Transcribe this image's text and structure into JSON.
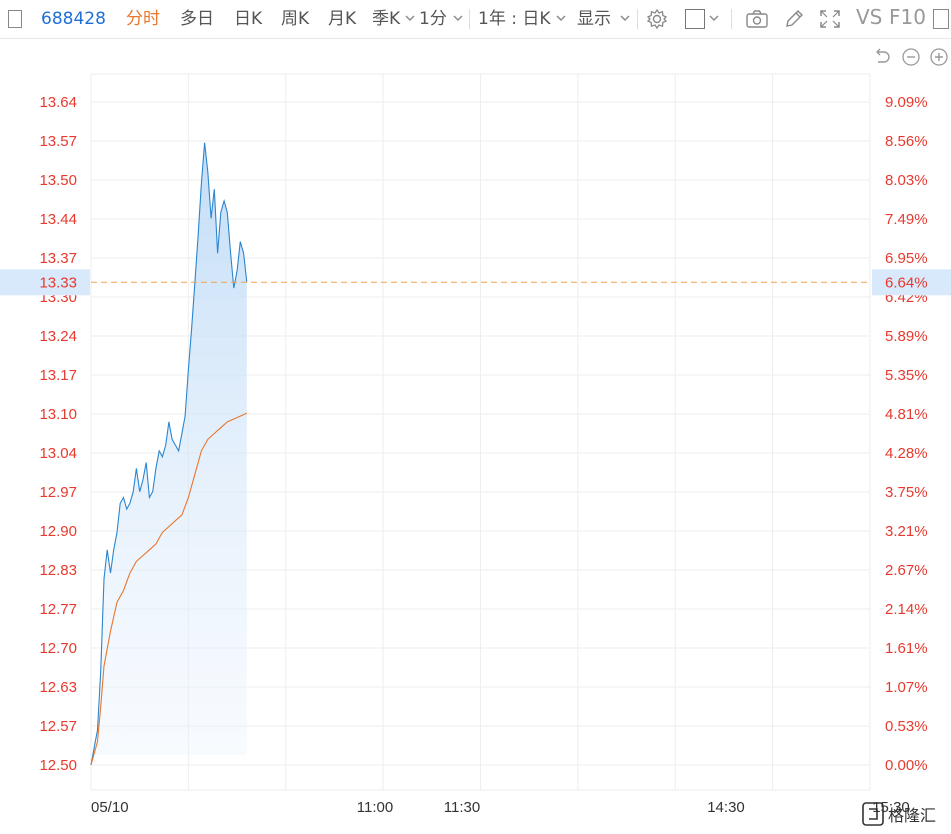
{
  "toolbar": {
    "code": "688428",
    "tabs": [
      "分时",
      "多日",
      "日K",
      "周K",
      "月K",
      "季K"
    ],
    "active_tab": "分时",
    "interval": "1分",
    "range": "1年 : 日K",
    "display": "显示",
    "vs": "VS",
    "f10": "F10"
  },
  "chart_data": {
    "type": "line",
    "current_price": "13.33",
    "current_pct": "6.64%",
    "left_ticks": [
      "13.64",
      "13.57",
      "13.50",
      "13.44",
      "13.37",
      "13.30",
      "13.24",
      "13.17",
      "13.10",
      "13.04",
      "12.97",
      "12.90",
      "12.83",
      "12.77",
      "12.70",
      "12.63",
      "12.57",
      "12.50"
    ],
    "right_ticks": [
      "9.09%",
      "8.56%",
      "8.03%",
      "7.49%",
      "6.95%",
      "6.42%",
      "5.89%",
      "5.35%",
      "4.81%",
      "4.28%",
      "3.75%",
      "3.21%",
      "2.67%",
      "2.14%",
      "1.61%",
      "1.07%",
      "0.53%",
      "0.00%"
    ],
    "x_labels": [
      "05/10",
      "11:00",
      "11:30",
      "14:30",
      "15:30"
    ],
    "ylim": [
      12.5,
      13.64
    ],
    "x_minutes_total": 240,
    "price": [
      [
        0,
        12.5
      ],
      [
        1,
        12.53
      ],
      [
        2,
        12.56
      ],
      [
        3,
        12.66
      ],
      [
        4,
        12.82
      ],
      [
        5,
        12.87
      ],
      [
        6,
        12.83
      ],
      [
        7,
        12.87
      ],
      [
        8,
        12.9
      ],
      [
        9,
        12.95
      ],
      [
        10,
        12.96
      ],
      [
        11,
        12.94
      ],
      [
        12,
        12.95
      ],
      [
        13,
        12.97
      ],
      [
        14,
        13.01
      ],
      [
        15,
        12.97
      ],
      [
        16,
        12.99
      ],
      [
        17,
        13.02
      ],
      [
        18,
        12.96
      ],
      [
        19,
        12.97
      ],
      [
        20,
        13.01
      ],
      [
        21,
        13.04
      ],
      [
        22,
        13.03
      ],
      [
        23,
        13.05
      ],
      [
        24,
        13.09
      ],
      [
        25,
        13.06
      ],
      [
        26,
        13.05
      ],
      [
        27,
        13.04
      ],
      [
        28,
        13.07
      ],
      [
        29,
        13.1
      ],
      [
        30,
        13.18
      ],
      [
        31,
        13.25
      ],
      [
        32,
        13.33
      ],
      [
        33,
        13.41
      ],
      [
        34,
        13.5
      ],
      [
        35,
        13.57
      ],
      [
        36,
        13.52
      ],
      [
        37,
        13.44
      ],
      [
        38,
        13.49
      ],
      [
        39,
        13.38
      ],
      [
        40,
        13.45
      ],
      [
        41,
        13.47
      ],
      [
        42,
        13.45
      ],
      [
        43,
        13.38
      ],
      [
        44,
        13.32
      ],
      [
        45,
        13.35
      ],
      [
        46,
        13.4
      ],
      [
        47,
        13.38
      ],
      [
        48,
        13.33
      ]
    ],
    "average": [
      [
        0,
        12.5
      ],
      [
        2,
        12.54
      ],
      [
        3,
        12.6
      ],
      [
        4,
        12.67
      ],
      [
        6,
        12.73
      ],
      [
        8,
        12.78
      ],
      [
        10,
        12.8
      ],
      [
        12,
        12.83
      ],
      [
        14,
        12.85
      ],
      [
        16,
        12.86
      ],
      [
        18,
        12.87
      ],
      [
        20,
        12.88
      ],
      [
        22,
        12.9
      ],
      [
        24,
        12.91
      ],
      [
        26,
        12.92
      ],
      [
        28,
        12.93
      ],
      [
        30,
        12.96
      ],
      [
        32,
        13.0
      ],
      [
        34,
        13.04
      ],
      [
        36,
        13.06
      ],
      [
        38,
        13.07
      ],
      [
        40,
        13.08
      ],
      [
        42,
        13.09
      ],
      [
        44,
        13.095
      ],
      [
        46,
        13.1
      ],
      [
        48,
        13.105
      ]
    ],
    "colors": {
      "price": "#2a86d0",
      "average": "#e8772e",
      "axis_text": "#e8392e",
      "x_text": "#333333",
      "grid": "#eeeeee",
      "ref_line": "#f0a050",
      "highlight": "#d7e9fb"
    }
  }
}
